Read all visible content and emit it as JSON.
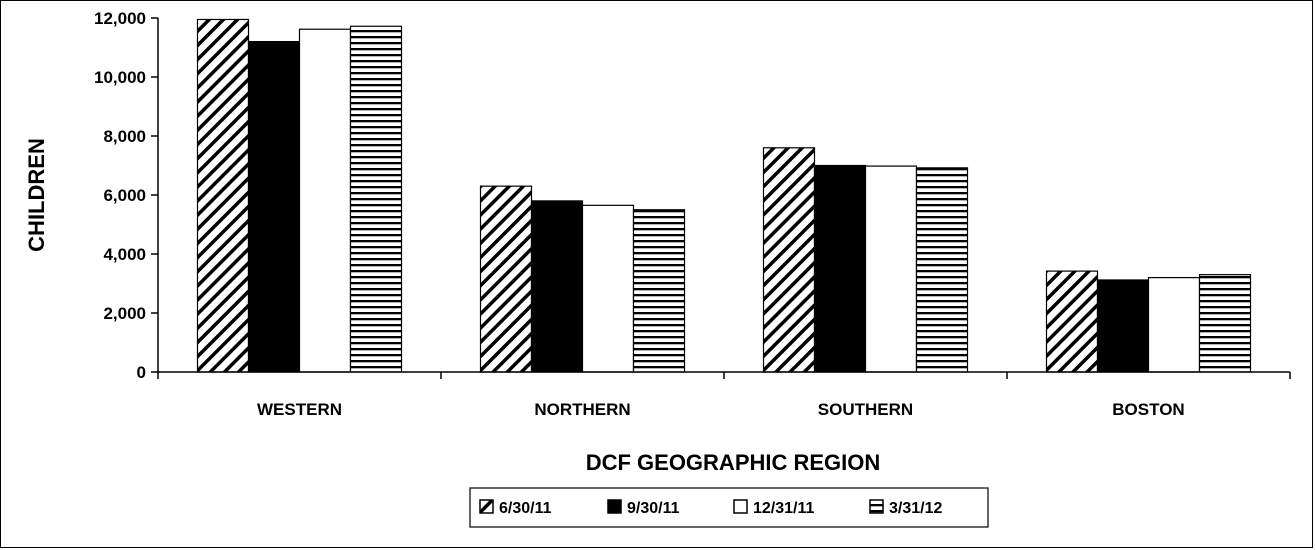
{
  "chart_data": {
    "type": "bar",
    "title": "",
    "xlabel": "DCF GEOGRAPHIC REGION",
    "ylabel": "CHILDREN",
    "categories": [
      "WESTERN",
      "NORTHERN",
      "SOUTHERN",
      "BOSTON"
    ],
    "ylim": [
      0,
      12000
    ],
    "yticks": [
      0,
      2000,
      4000,
      6000,
      8000,
      10000,
      12000
    ],
    "ytick_labels": [
      "0",
      "2,000",
      "4,000",
      "6,000",
      "8,000",
      "10,000",
      "12,000"
    ],
    "grid": false,
    "legend_position": "bottom-center",
    "series": [
      {
        "name": "6/30/11",
        "pattern": "diagonal-hatch",
        "values": [
          11950,
          6300,
          7600,
          3420
        ]
      },
      {
        "name": "9/30/11",
        "pattern": "solid-black",
        "values": [
          11200,
          5800,
          7000,
          3120
        ]
      },
      {
        "name": "12/31/11",
        "pattern": "white",
        "values": [
          11620,
          5650,
          6980,
          3200
        ]
      },
      {
        "name": "3/31/12",
        "pattern": "horizontal-lines",
        "values": [
          11720,
          5500,
          6920,
          3300
        ]
      }
    ]
  }
}
